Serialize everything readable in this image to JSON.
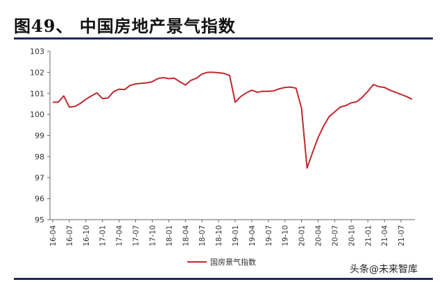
{
  "figure": {
    "title": "图49、 中国房地产景气指数"
  },
  "watermark": "头条@未来智库",
  "chart_data": {
    "type": "line",
    "ylim": [
      95,
      103
    ],
    "yticks": [
      95,
      96,
      97,
      98,
      99,
      100,
      101,
      102,
      103
    ],
    "xticks": [
      "16-04",
      "16-07",
      "16-10",
      "17-01",
      "17-04",
      "17-07",
      "17-10",
      "18-01",
      "18-04",
      "18-07",
      "18-10",
      "19-01",
      "19-04",
      "19-07",
      "19-10",
      "20-01",
      "20-04",
      "20-07",
      "20-10",
      "21-01",
      "21-04",
      "21-07"
    ],
    "x": [
      "16-04",
      "16-05",
      "16-06",
      "16-07",
      "16-08",
      "16-09",
      "16-10",
      "16-11",
      "16-12",
      "17-01",
      "17-02",
      "17-03",
      "17-04",
      "17-05",
      "17-06",
      "17-07",
      "17-08",
      "17-09",
      "17-10",
      "17-11",
      "17-12",
      "18-01",
      "18-02",
      "18-03",
      "18-04",
      "18-05",
      "18-06",
      "18-07",
      "18-08",
      "18-09",
      "18-10",
      "18-11",
      "18-12",
      "19-01",
      "19-02",
      "19-03",
      "19-04",
      "19-05",
      "19-06",
      "19-07",
      "19-08",
      "19-09",
      "19-10",
      "19-11",
      "19-12",
      "20-01",
      "20-02",
      "20-03",
      "20-04",
      "20-05",
      "20-06",
      "20-07",
      "20-08",
      "20-09",
      "20-10",
      "20-11",
      "20-12",
      "21-01",
      "21-02",
      "21-03",
      "21-04",
      "21-05",
      "21-06",
      "21-07",
      "21-08",
      "21-09"
    ],
    "series": [
      {
        "name": "国房景气指数",
        "color": "#c0272d",
        "values": [
          100.58,
          100.58,
          100.88,
          100.35,
          100.38,
          100.52,
          100.72,
          100.88,
          101.02,
          100.75,
          100.78,
          101.08,
          101.2,
          101.18,
          101.38,
          101.45,
          101.48,
          101.5,
          101.55,
          101.7,
          101.75,
          101.7,
          101.72,
          101.55,
          101.4,
          101.62,
          101.72,
          101.92,
          102.0,
          102.0,
          101.98,
          101.95,
          101.85,
          100.58,
          100.85,
          101.02,
          101.15,
          101.05,
          101.1,
          101.1,
          101.12,
          101.22,
          101.28,
          101.3,
          101.25,
          100.3,
          97.45,
          98.2,
          98.9,
          99.45,
          99.9,
          100.12,
          100.35,
          100.42,
          100.55,
          100.6,
          100.82,
          101.1,
          101.42,
          101.32,
          101.28,
          101.15,
          101.05,
          100.95,
          100.85,
          100.72
        ]
      }
    ],
    "legend": "bottom-center"
  }
}
